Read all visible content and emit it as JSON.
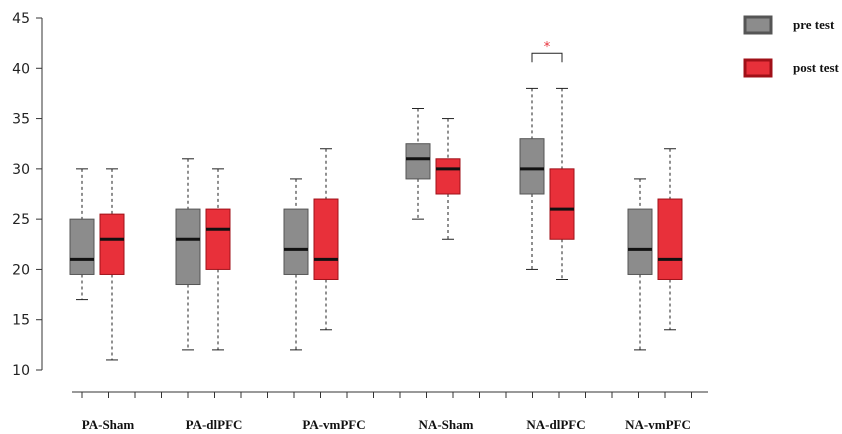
{
  "chart_data": {
    "type": "boxplot",
    "title": "",
    "xlabel": "",
    "ylabel": "",
    "ylim": [
      10,
      45
    ],
    "yticks": [
      10,
      15,
      20,
      25,
      30,
      35,
      40,
      45
    ],
    "categories": [
      "PA-Sham",
      "PA-dlPFC",
      "PA-vmPFC",
      "NA-Sham",
      "NA-dlPFC",
      "NA-vmPFC"
    ],
    "legend": {
      "position": "top-right"
    },
    "series": [
      {
        "name": "pre test",
        "color": "#8c8c8c",
        "edge_color": "#555555",
        "boxes": [
          {
            "min": 17,
            "q1": 19.5,
            "median": 21,
            "q3": 25,
            "max": 30
          },
          {
            "min": 12,
            "q1": 18.5,
            "median": 23,
            "q3": 26,
            "max": 31
          },
          {
            "min": 12,
            "q1": 19.5,
            "median": 22,
            "q3": 26,
            "max": 29
          },
          {
            "min": 25,
            "q1": 29,
            "median": 31,
            "q3": 32.5,
            "max": 36
          },
          {
            "min": 20,
            "q1": 27.5,
            "median": 30,
            "q3": 33,
            "max": 38
          },
          {
            "min": 12,
            "q1": 19.5,
            "median": 22,
            "q3": 26,
            "max": 29
          }
        ]
      },
      {
        "name": "post test",
        "color": "#e8303a",
        "edge_color": "#a01018",
        "boxes": [
          {
            "min": 11,
            "q1": 19.5,
            "median": 23,
            "q3": 25.5,
            "max": 30
          },
          {
            "min": 12,
            "q1": 20,
            "median": 24,
            "q3": 26,
            "max": 30
          },
          {
            "min": 14,
            "q1": 19,
            "median": 21,
            "q3": 27,
            "max": 32
          },
          {
            "min": 23,
            "q1": 27.5,
            "median": 30,
            "q3": 31,
            "max": 35
          },
          {
            "min": 19,
            "q1": 23,
            "median": 26,
            "q3": 30,
            "max": 38
          },
          {
            "min": 14,
            "q1": 19,
            "median": 21,
            "q3": 27,
            "max": 32
          }
        ]
      }
    ],
    "annotations": [
      {
        "category": "NA-dlPFC",
        "text": "*",
        "y": 41.5
      }
    ]
  }
}
